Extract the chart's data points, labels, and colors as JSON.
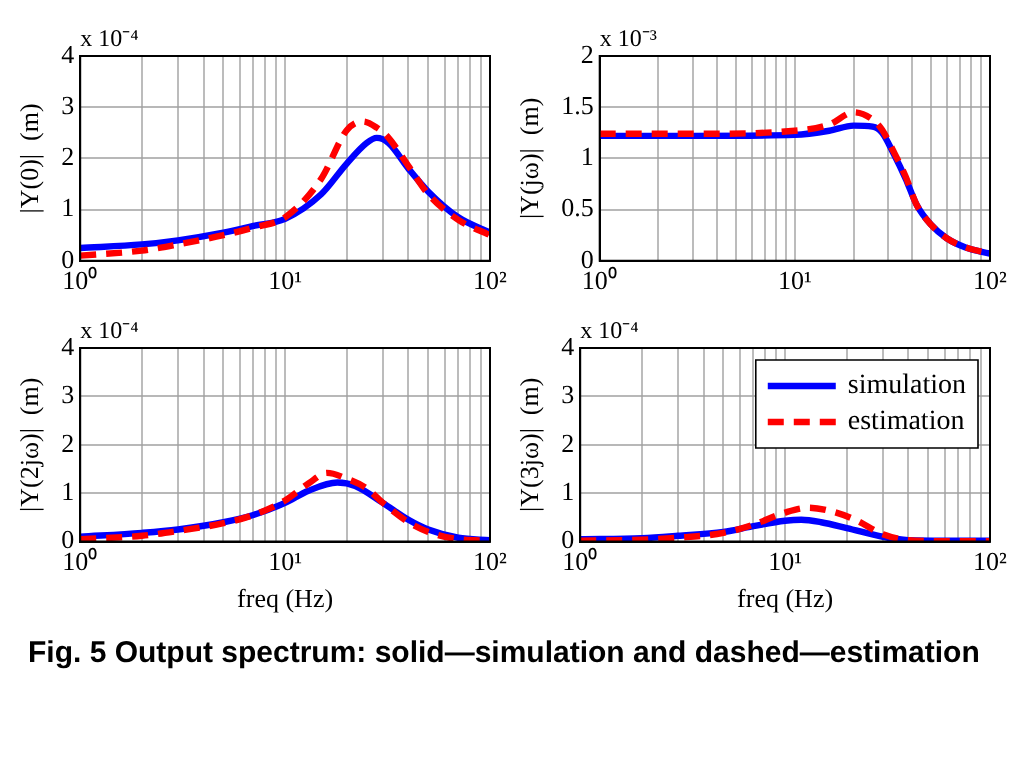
{
  "chart_data": [
    {
      "type": "line",
      "ylabel": "|Y(0)|  (m)",
      "annotations": [
        "x 10⁻⁴"
      ],
      "log": "x",
      "grid": true,
      "xlim": [
        1,
        100
      ],
      "xticks": [
        {
          "value": 1,
          "label": "10⁰"
        },
        {
          "value": 2,
          "label": null
        },
        {
          "value": 3,
          "label": null
        },
        {
          "value": 4,
          "label": null
        },
        {
          "value": 5,
          "label": null
        },
        {
          "value": 6,
          "label": null
        },
        {
          "value": 7,
          "label": null
        },
        {
          "value": 8,
          "label": null
        },
        {
          "value": 9,
          "label": null
        },
        {
          "value": 10,
          "label": "10¹"
        },
        {
          "value": 20,
          "label": null
        },
        {
          "value": 30,
          "label": null
        },
        {
          "value": 40,
          "label": null
        },
        {
          "value": 50,
          "label": null
        },
        {
          "value": 60,
          "label": null
        },
        {
          "value": 70,
          "label": null
        },
        {
          "value": 80,
          "label": null
        },
        {
          "value": 90,
          "label": null
        },
        {
          "value": 100,
          "label": "10²"
        }
      ],
      "ylim": [
        0,
        4
      ],
      "yticks": [
        0,
        1,
        2,
        3,
        4
      ],
      "series": [
        {
          "color": "#0000ff",
          "line_style": "solid",
          "x": [
            1,
            2,
            3,
            5,
            7,
            10,
            15,
            20,
            25,
            28,
            32,
            40,
            50,
            70,
            100
          ],
          "values": [
            0.25,
            0.32,
            0.4,
            0.55,
            0.68,
            0.82,
            1.3,
            1.9,
            2.3,
            2.4,
            2.3,
            1.8,
            1.35,
            0.85,
            0.55
          ]
        },
        {
          "color": "#ff0000",
          "line_style": "dashed",
          "x": [
            1,
            2,
            3,
            5,
            7,
            10,
            15,
            20,
            24,
            28,
            32,
            40,
            50,
            70,
            100
          ],
          "values": [
            0.1,
            0.2,
            0.32,
            0.5,
            0.65,
            0.85,
            1.6,
            2.55,
            2.72,
            2.6,
            2.4,
            1.85,
            1.3,
            0.8,
            0.5
          ]
        }
      ]
    },
    {
      "type": "line",
      "ylabel": "|Y(jω)|  (m)",
      "annotations": [
        "x 10⁻³"
      ],
      "log": "x",
      "grid": true,
      "xlim": [
        1,
        100
      ],
      "xticks": [
        {
          "value": 1,
          "label": "10⁰"
        },
        {
          "value": 2,
          "label": null
        },
        {
          "value": 3,
          "label": null
        },
        {
          "value": 4,
          "label": null
        },
        {
          "value": 5,
          "label": null
        },
        {
          "value": 6,
          "label": null
        },
        {
          "value": 7,
          "label": null
        },
        {
          "value": 8,
          "label": null
        },
        {
          "value": 9,
          "label": null
        },
        {
          "value": 10,
          "label": "10¹"
        },
        {
          "value": 20,
          "label": null
        },
        {
          "value": 30,
          "label": null
        },
        {
          "value": 40,
          "label": null
        },
        {
          "value": 50,
          "label": null
        },
        {
          "value": 60,
          "label": null
        },
        {
          "value": 70,
          "label": null
        },
        {
          "value": 80,
          "label": null
        },
        {
          "value": 90,
          "label": null
        },
        {
          "value": 100,
          "label": "10²"
        }
      ],
      "ylim": [
        0,
        2
      ],
      "yticks": [
        0,
        0.5,
        1,
        1.5,
        2
      ],
      "series": [
        {
          "color": "#0000ff",
          "line_style": "solid",
          "x": [
            1,
            3,
            10,
            15,
            20,
            25,
            28,
            32,
            37,
            42,
            50,
            60,
            75,
            100
          ],
          "values": [
            1.22,
            1.22,
            1.23,
            1.27,
            1.32,
            1.31,
            1.25,
            1.05,
            0.8,
            0.55,
            0.35,
            0.22,
            0.13,
            0.07
          ]
        },
        {
          "color": "#ff0000",
          "line_style": "dashed",
          "x": [
            1,
            3,
            10,
            15,
            20,
            25,
            28,
            32,
            37,
            42,
            50,
            60,
            75,
            100
          ],
          "values": [
            1.24,
            1.24,
            1.27,
            1.33,
            1.45,
            1.38,
            1.28,
            1.07,
            0.82,
            0.55,
            0.35,
            0.22,
            0.13,
            0.07
          ]
        }
      ]
    },
    {
      "type": "line",
      "xlabel": "freq (Hz)",
      "ylabel": "|Y(2jω)|  (m)",
      "annotations": [
        "x 10⁻⁴"
      ],
      "log": "x",
      "grid": true,
      "xlim": [
        1,
        100
      ],
      "xticks": [
        {
          "value": 1,
          "label": "10⁰"
        },
        {
          "value": 2,
          "label": null
        },
        {
          "value": 3,
          "label": null
        },
        {
          "value": 4,
          "label": null
        },
        {
          "value": 5,
          "label": null
        },
        {
          "value": 6,
          "label": null
        },
        {
          "value": 7,
          "label": null
        },
        {
          "value": 8,
          "label": null
        },
        {
          "value": 9,
          "label": null
        },
        {
          "value": 10,
          "label": "10¹"
        },
        {
          "value": 20,
          "label": null
        },
        {
          "value": 30,
          "label": null
        },
        {
          "value": 40,
          "label": null
        },
        {
          "value": 50,
          "label": null
        },
        {
          "value": 60,
          "label": null
        },
        {
          "value": 70,
          "label": null
        },
        {
          "value": 80,
          "label": null
        },
        {
          "value": 90,
          "label": null
        },
        {
          "value": 100,
          "label": "10²"
        }
      ],
      "ylim": [
        0,
        4
      ],
      "yticks": [
        0,
        1,
        2,
        3,
        4
      ],
      "series": [
        {
          "color": "#0000ff",
          "line_style": "solid",
          "x": [
            1,
            2,
            3,
            5,
            7,
            10,
            13,
            18,
            22,
            30,
            40,
            50,
            70,
            100
          ],
          "values": [
            0.1,
            0.18,
            0.25,
            0.4,
            0.55,
            0.8,
            1.05,
            1.22,
            1.15,
            0.8,
            0.45,
            0.25,
            0.08,
            0.03
          ]
        },
        {
          "color": "#ff0000",
          "line_style": "dashed",
          "x": [
            1,
            2,
            3,
            5,
            7,
            10,
            13,
            16,
            20,
            25,
            30,
            40,
            50,
            70,
            100
          ],
          "values": [
            0.05,
            0.12,
            0.22,
            0.38,
            0.55,
            0.85,
            1.2,
            1.42,
            1.3,
            1.1,
            0.8,
            0.4,
            0.2,
            0.05,
            0.02
          ]
        }
      ]
    },
    {
      "type": "line",
      "xlabel": "freq (Hz)",
      "ylabel": "|Y(3jω)|  (m)",
      "annotations": [
        "x 10⁻⁴",
        "Fig. 5  Output spectrum: solid—simulation and dashed—estimation"
      ],
      "log": "x",
      "grid": true,
      "legend": "top right",
      "xlim": [
        1,
        100
      ],
      "xticks": [
        {
          "value": 1,
          "label": "10⁰"
        },
        {
          "value": 2,
          "label": null
        },
        {
          "value": 3,
          "label": null
        },
        {
          "value": 4,
          "label": null
        },
        {
          "value": 5,
          "label": null
        },
        {
          "value": 6,
          "label": null
        },
        {
          "value": 7,
          "label": null
        },
        {
          "value": 8,
          "label": null
        },
        {
          "value": 9,
          "label": null
        },
        {
          "value": 10,
          "label": "10¹"
        },
        {
          "value": 20,
          "label": null
        },
        {
          "value": 30,
          "label": null
        },
        {
          "value": 40,
          "label": null
        },
        {
          "value": 50,
          "label": null
        },
        {
          "value": 60,
          "label": null
        },
        {
          "value": 70,
          "label": null
        },
        {
          "value": 80,
          "label": null
        },
        {
          "value": 90,
          "label": null
        },
        {
          "value": 100,
          "label": "10²"
        }
      ],
      "ylim": [
        0,
        4
      ],
      "yticks": [
        0,
        1,
        2,
        3,
        4
      ],
      "series": [
        {
          "name": "simulation",
          "color": "#0000ff",
          "line_style": "solid",
          "x": [
            1,
            2,
            3,
            5,
            7,
            10,
            12,
            15,
            20,
            30,
            40,
            60,
            100
          ],
          "values": [
            0.05,
            0.07,
            0.12,
            0.2,
            0.32,
            0.43,
            0.45,
            0.4,
            0.28,
            0.1,
            0.03,
            0.02,
            0.02
          ]
        },
        {
          "name": "estimation",
          "color": "#ff0000",
          "line_style": "dashed",
          "x": [
            1,
            2,
            3,
            5,
            7,
            10,
            13,
            17,
            22,
            30,
            40,
            60,
            100
          ],
          "values": [
            0.02,
            0.04,
            0.08,
            0.18,
            0.35,
            0.6,
            0.7,
            0.62,
            0.45,
            0.15,
            0.03,
            0.01,
            0.01
          ]
        }
      ]
    }
  ]
}
